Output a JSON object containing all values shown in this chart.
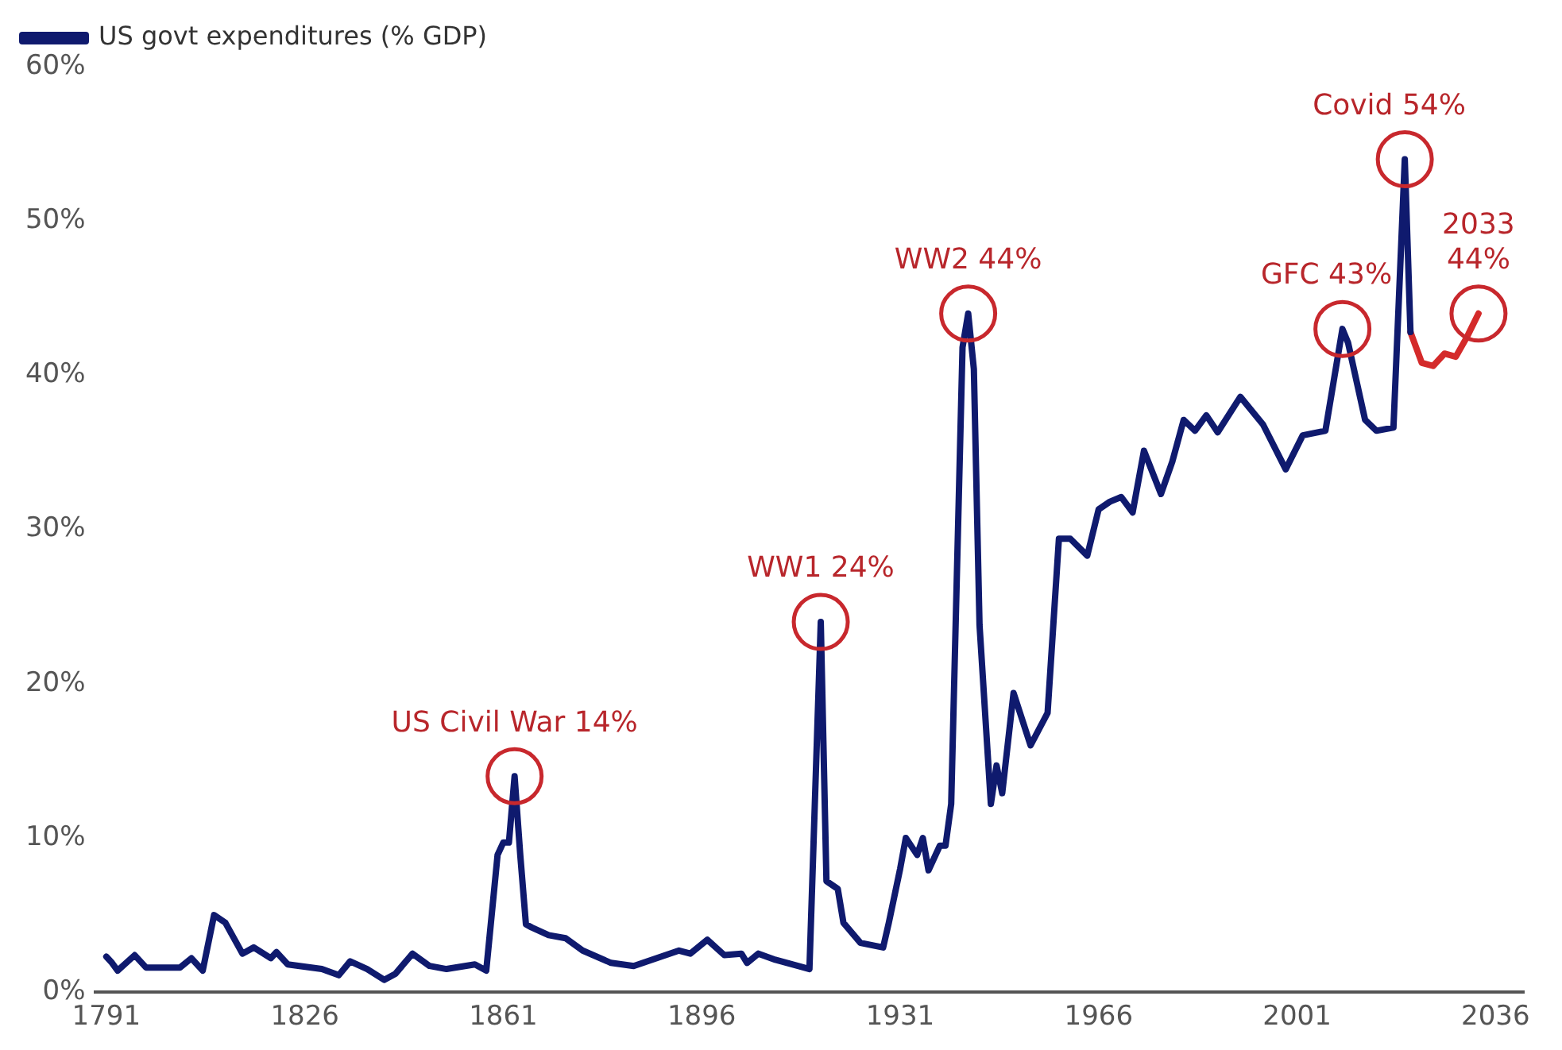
{
  "chart_data": {
    "type": "line",
    "legend": "top left",
    "grid": false,
    "marker": "none",
    "line_style": "solid",
    "xlim": [
      1789,
      2041
    ],
    "xticks": [
      1791,
      1826,
      1861,
      1896,
      1931,
      1966,
      2001,
      2036
    ],
    "ylim": [
      0,
      60
    ],
    "yticks": [
      {
        "value": 0,
        "label": "0%"
      },
      {
        "value": 10,
        "label": "10%"
      },
      {
        "value": 20,
        "label": "20%"
      },
      {
        "value": 30,
        "label": "30%"
      },
      {
        "value": 40,
        "label": "40%"
      },
      {
        "value": 50,
        "label": "50%"
      },
      {
        "value": 60,
        "label": "60%"
      }
    ],
    "series": [
      {
        "name": "US govt expenditures (% GDP)",
        "color": "#0f1a6e",
        "x": [
          1791,
          1792,
          1793,
          1796,
          1798,
          1804,
          1806,
          1808,
          1810,
          1812,
          1815,
          1817,
          1820,
          1821,
          1823,
          1829,
          1832,
          1834,
          1837,
          1840,
          1842,
          1845,
          1848,
          1851,
          1856,
          1858,
          1860,
          1861,
          1862,
          1863,
          1864,
          1865,
          1866,
          1869,
          1872,
          1875,
          1880,
          1884,
          1892,
          1894,
          1897,
          1900,
          1903,
          1904,
          1906,
          1909,
          1914,
          1915,
          1917,
          1918,
          1920,
          1921,
          1924,
          1928,
          1929,
          1931,
          1932,
          1934,
          1935,
          1936,
          1938,
          1939,
          1940,
          1942,
          1943,
          1944,
          1945,
          1947,
          1948,
          1949,
          1951,
          1954,
          1957,
          1959,
          1961,
          1964,
          1966,
          1968,
          1970,
          1972,
          1974,
          1977,
          1979,
          1981,
          1983,
          1985,
          1987,
          1991,
          1995,
          1999,
          2002,
          2006,
          2009,
          2010,
          2013,
          2015,
          2018,
          2020,
          2021
        ],
        "values": [
          2.3,
          1.9,
          1.4,
          2.4,
          1.6,
          1.6,
          2.2,
          1.4,
          5.0,
          4.5,
          2.5,
          2.9,
          2.2,
          2.6,
          1.8,
          1.5,
          1.1,
          2.0,
          1.5,
          0.8,
          1.2,
          2.5,
          1.7,
          1.5,
          1.8,
          1.4,
          8.9,
          9.7,
          9.7,
          14,
          8.9,
          4.4,
          4.2,
          3.7,
          3.5,
          2.7,
          1.9,
          1.7,
          2.7,
          2.5,
          3.4,
          2.4,
          2.5,
          1.9,
          2.5,
          2.1,
          1.6,
          1.5,
          24,
          7.2,
          6.7,
          4.5,
          3.2,
          2.9,
          4.5,
          8.0,
          10.0,
          8.9,
          10.0,
          7.9,
          9.5,
          9.5,
          12.2,
          41.8,
          44,
          40.4,
          23.8,
          12.2,
          14.7,
          12.9,
          19.4,
          16.0,
          18.1,
          29.4,
          29.4,
          28.3,
          31.3,
          31.8,
          32.1,
          31.1,
          35.1,
          32.3,
          34.4,
          37.1,
          36.4,
          37.4,
          36.3,
          38.6,
          36.8,
          33.9,
          36.1,
          36.4,
          43,
          42.1,
          37.1,
          36.4,
          36.6,
          54,
          42.8
        ]
      },
      {
        "color": "#d42a2a",
        "x": [
          2021,
          2023,
          2025,
          2027,
          2029,
          2031,
          2033
        ],
        "values": [
          42.8,
          40.8,
          40.6,
          41.4,
          41.2,
          42.5,
          44
        ]
      }
    ],
    "annotations": [
      {
        "text": "US Civil War 14%",
        "x": 1863,
        "y": 14
      },
      {
        "text": "WW1 24%",
        "x": 1917,
        "y": 24
      },
      {
        "text": "WW2 44%",
        "x": 1943,
        "y": 44
      },
      {
        "text": "GFC 43%",
        "x": 2009,
        "y": 43
      },
      {
        "text": "Covid 54%",
        "x": 2020,
        "y": 54
      },
      {
        "text": "2033\n44%",
        "x": 2033,
        "y": 44
      }
    ]
  }
}
